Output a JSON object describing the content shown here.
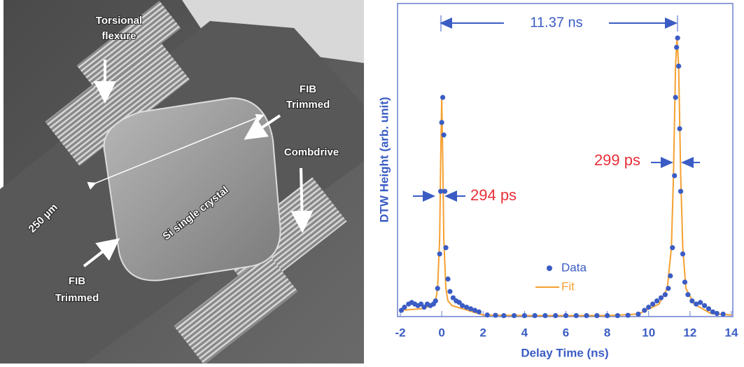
{
  "image": {
    "labels": {
      "torsional_flexure": [
        "Torsional",
        "flexure"
      ],
      "fib_trimmed_top": [
        "FIB",
        "Trimmed"
      ],
      "combdrive": "Combdrive",
      "scale": "250 µm",
      "crystal": "Si single crystal",
      "fib_trimmed_bottom": [
        "FIB",
        "Trimmed"
      ]
    }
  },
  "chart_data": {
    "type": "scatter",
    "xlabel": "Delay Time (ns)",
    "ylabel": "DTW Height (arb. unit)",
    "xlim": [
      -2,
      14
    ],
    "xticks": [
      -2,
      0,
      2,
      4,
      6,
      8,
      10,
      12,
      14
    ],
    "ylim": [
      0,
      100
    ],
    "legend": "lower-center",
    "annotations": {
      "period": "11.37 ns",
      "width_left": "294 ps",
      "width_right": "299 ps"
    },
    "series": [
      {
        "name": "Data",
        "style": "markers",
        "color": "#3a5cc4",
        "x": [
          -1.95,
          -1.8,
          -1.6,
          -1.45,
          -1.3,
          -1.15,
          -1.0,
          -0.85,
          -0.7,
          -0.55,
          -0.4,
          -0.3,
          -0.2,
          -0.1,
          -0.05,
          0.0,
          0.05,
          0.1,
          0.15,
          0.2,
          0.3,
          0.4,
          0.55,
          0.7,
          0.85,
          1.0,
          1.2,
          1.4,
          1.6,
          1.8,
          2.2,
          2.6,
          3,
          3.5,
          4,
          4.5,
          5,
          5.5,
          6,
          6.5,
          7,
          7.5,
          8,
          8.5,
          9,
          9.5,
          9.8,
          10.0,
          10.2,
          10.4,
          10.6,
          10.8,
          10.95,
          11.05,
          11.15,
          11.25,
          11.3,
          11.35,
          11.4,
          11.45,
          11.5,
          11.55,
          11.65,
          11.75,
          11.9,
          12.1,
          12.3,
          12.5,
          12.7,
          12.9,
          13.1,
          13.3,
          13.6
        ],
        "values": [
          2,
          3,
          4,
          4.5,
          4,
          3.5,
          4,
          3,
          4,
          3.5,
          4,
          5,
          9,
          20,
          40,
          62,
          70,
          58,
          40,
          22,
          12,
          8,
          6,
          5,
          4.5,
          3.5,
          3,
          2.5,
          2,
          1.5,
          0.5,
          0.4,
          0.3,
          0.3,
          0.3,
          0.3,
          0.3,
          0.3,
          0.3,
          0.3,
          0.3,
          0.3,
          0.3,
          0.3,
          0.4,
          0.8,
          2,
          3,
          4,
          5,
          6,
          7,
          9,
          13,
          22,
          45,
          70,
          86,
          89,
          80,
          60,
          40,
          20,
          11,
          7,
          5,
          4,
          4.5,
          3.5,
          2.5,
          1.5,
          1,
          0.8
        ]
      },
      {
        "name": "Fit",
        "style": "line",
        "color": "#f5a030",
        "x": [
          -2,
          -1,
          -0.5,
          -0.3,
          -0.2,
          -0.1,
          -0.05,
          0,
          0.05,
          0.1,
          0.2,
          0.3,
          0.5,
          1,
          2,
          4,
          6,
          8,
          9.5,
          10.5,
          10.9,
          11.1,
          11.2,
          11.3,
          11.37,
          11.45,
          11.55,
          11.65,
          11.8,
          12.2,
          13,
          14
        ],
        "values": [
          2,
          2.5,
          3.5,
          5,
          9,
          25,
          50,
          70,
          50,
          25,
          9,
          5,
          3.5,
          2.5,
          0.5,
          0.3,
          0.3,
          0.3,
          0.8,
          4,
          9,
          22,
          45,
          80,
          89,
          80,
          45,
          22,
          9,
          4,
          1,
          0.5
        ]
      }
    ]
  }
}
